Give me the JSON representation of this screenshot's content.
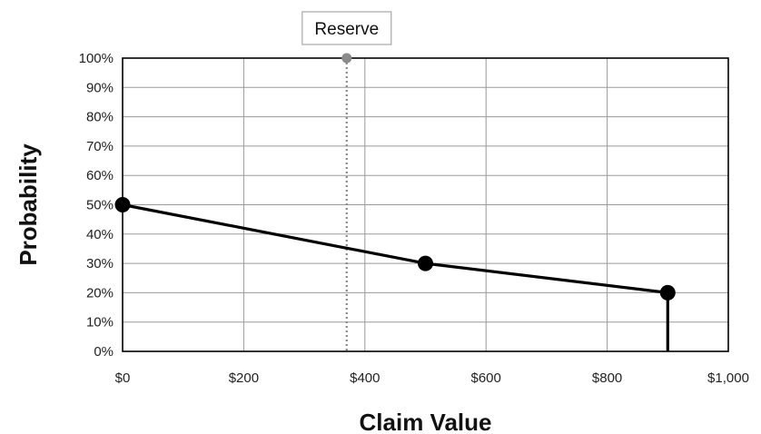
{
  "chart_data": {
    "type": "line",
    "title": "",
    "xlabel": "Claim Value",
    "ylabel": "Probability",
    "xlim": [
      0,
      1000
    ],
    "ylim": [
      0,
      100
    ],
    "x_ticks": [
      "$0",
      "$200",
      "$400",
      "$600",
      "$800",
      "$1,000"
    ],
    "x_tick_values": [
      0,
      200,
      400,
      600,
      800,
      1000
    ],
    "y_ticks": [
      "0%",
      "10%",
      "20%",
      "30%",
      "40%",
      "50%",
      "60%",
      "70%",
      "80%",
      "90%",
      "100%"
    ],
    "y_tick_values": [
      0,
      10,
      20,
      30,
      40,
      50,
      60,
      70,
      80,
      90,
      100
    ],
    "grid": true,
    "series": [
      {
        "x": [
          0,
          500,
          900
        ],
        "y": [
          50,
          30,
          20
        ],
        "color": "#000000"
      }
    ],
    "drop_line": {
      "x": 900,
      "y_from": 20,
      "y_to": 0,
      "color": "#000000"
    },
    "annotations": [
      {
        "label": "Reserve",
        "x": 370,
        "style": "dotted-vertical-line",
        "color": "#8a8a8a"
      }
    ]
  }
}
